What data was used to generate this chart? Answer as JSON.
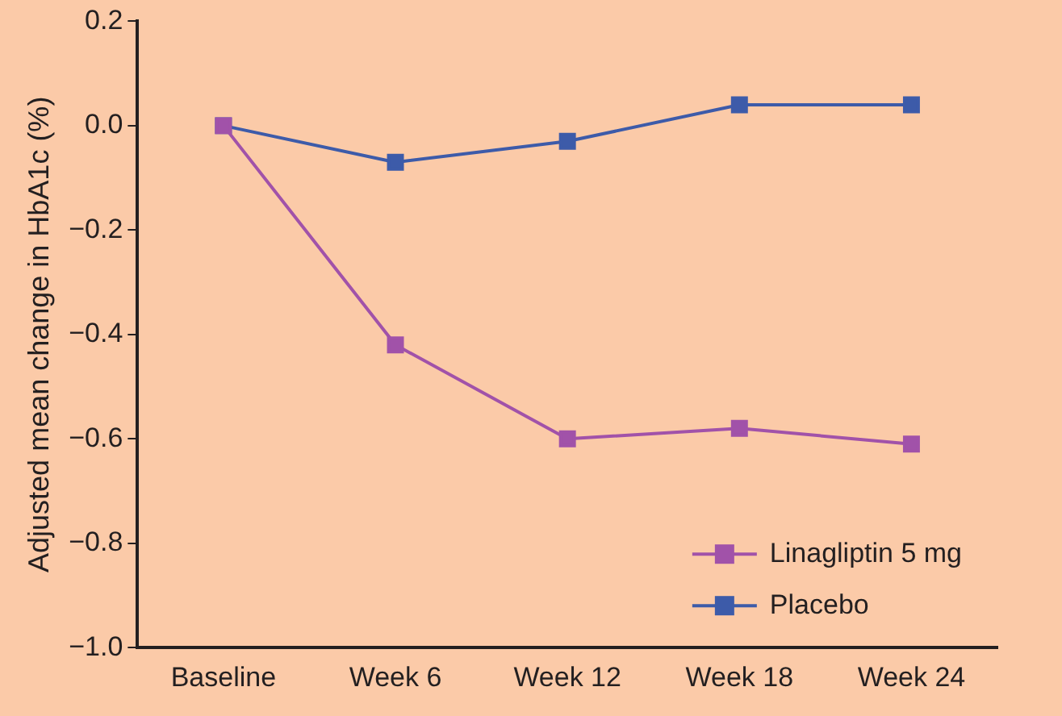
{
  "chart_data": {
    "type": "line",
    "ylabel": "Adjusted mean change in HbA1c (%)",
    "categories": [
      "Baseline",
      "Week 6",
      "Week 12",
      "Week 18",
      "Week 24"
    ],
    "series": [
      {
        "name": "Linagliptin 5 mg",
        "color": "#a152a9",
        "values": [
          0,
          -0.42,
          -0.6,
          -0.58,
          -0.61
        ]
      },
      {
        "name": "Placebo",
        "color": "#3d5ba9",
        "values": [
          0,
          -0.07,
          -0.03,
          0.04,
          0.04
        ]
      }
    ],
    "ylim": [
      -1,
      0.2
    ],
    "yticks": [
      {
        "value": -1,
        "label": "−1.0"
      },
      {
        "value": -0.8,
        "label": "−0.8"
      },
      {
        "value": -0.6,
        "label": "−0.6"
      },
      {
        "value": -0.4,
        "label": "−0.4"
      },
      {
        "value": -0.2,
        "label": "−0.2"
      },
      {
        "value": 0,
        "label": "0.0"
      },
      {
        "value": 0.2,
        "label": "0.2"
      }
    ],
    "grid": false,
    "legend": "bottom right",
    "marker": "square",
    "line_style": "solid"
  }
}
